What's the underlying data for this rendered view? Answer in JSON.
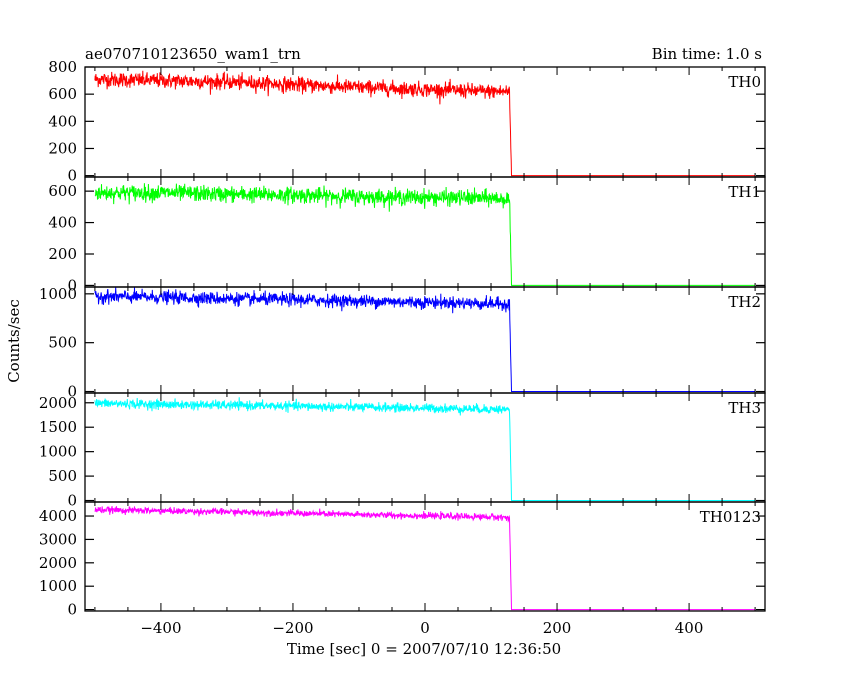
{
  "title_left": "ae070710123650_wam1_trn",
  "title_right": "Bin time: 1.0 s",
  "chart_data": {
    "type": "line",
    "xlabel": "Time [sec] 0 = 2007/07/10 12:36:50",
    "ylabel": "Counts/sec",
    "xlim": [
      -515,
      515
    ],
    "x_ticks": [
      -400,
      -200,
      0,
      200,
      400
    ],
    "x_tick_labels": [
      "−400",
      "−200",
      "0",
      "200",
      "400"
    ],
    "grid": false,
    "bin_time_s": 1.0,
    "data_x_range": [
      -500,
      500
    ],
    "drop_time": 130,
    "panels": [
      {
        "name": "TH0",
        "color": "#ff0000",
        "ylim": [
          -10,
          800
        ],
        "y_ticks": [
          0,
          200,
          400,
          600,
          800
        ],
        "y_tick_labels": [
          "0",
          "200",
          "400",
          "600",
          "800"
        ],
        "series": {
          "x": [
            -500,
            -400,
            -300,
            -200,
            -100,
            0,
            100,
            128,
            131,
            500
          ],
          "y": [
            710,
            700,
            690,
            670,
            650,
            635,
            620,
            620,
            0,
            0
          ]
        }
      },
      {
        "name": "TH1",
        "color": "#00ff00",
        "ylim": [
          -10,
          690
        ],
        "y_ticks": [
          0,
          200,
          400,
          600
        ],
        "y_tick_labels": [
          "0",
          "200",
          "400",
          "600"
        ],
        "series": {
          "x": [
            -500,
            -400,
            -300,
            -200,
            -100,
            0,
            100,
            128,
            131,
            500
          ],
          "y": [
            590,
            590,
            580,
            575,
            565,
            560,
            555,
            550,
            0,
            0
          ]
        }
      },
      {
        "name": "TH2",
        "color": "#0000ff",
        "ylim": [
          -15,
          1070
        ],
        "y_ticks": [
          0,
          500,
          1000
        ],
        "y_tick_labels": [
          "0",
          "500",
          "1000"
        ],
        "series": {
          "x": [
            -500,
            -400,
            -300,
            -200,
            -100,
            0,
            100,
            128,
            131,
            500
          ],
          "y": [
            975,
            965,
            950,
            940,
            925,
            915,
            900,
            895,
            0,
            0
          ]
        }
      },
      {
        "name": "TH3",
        "color": "#00ffff",
        "ylim": [
          -30,
          2200
        ],
        "y_ticks": [
          0,
          500,
          1000,
          1500,
          2000
        ],
        "y_tick_labels": [
          "0",
          "500",
          "1000",
          "1500",
          "2000"
        ],
        "series": {
          "x": [
            -500,
            -400,
            -300,
            -200,
            -100,
            0,
            100,
            128,
            131,
            500
          ],
          "y": [
            1990,
            1965,
            1950,
            1930,
            1910,
            1890,
            1870,
            1860,
            0,
            0
          ]
        }
      },
      {
        "name": "TH0123",
        "color": "#ff00ff",
        "ylim": [
          -60,
          4600
        ],
        "y_ticks": [
          0,
          1000,
          2000,
          3000,
          4000
        ],
        "y_tick_labels": [
          "0",
          "1000",
          "2000",
          "3000",
          "4000"
        ],
        "series": {
          "x": [
            -500,
            -400,
            -300,
            -200,
            -100,
            0,
            100,
            128,
            131,
            500
          ],
          "y": [
            4270,
            4220,
            4180,
            4120,
            4060,
            4010,
            3960,
            3940,
            0,
            0
          ]
        }
      }
    ]
  }
}
